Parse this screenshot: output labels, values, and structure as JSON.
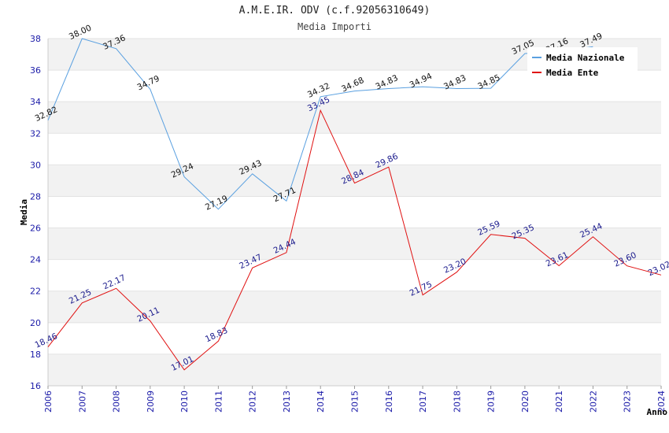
{
  "chart_data": {
    "type": "line",
    "title": "A.M.E.IR. ODV (c.f.92056310649)",
    "subtitle": "Media Importi",
    "xlabel": "Anno",
    "ylabel": "Media",
    "ylim": [
      16,
      38
    ],
    "yticks": [
      16,
      18,
      20,
      22,
      24,
      26,
      28,
      30,
      32,
      34,
      36,
      38
    ],
    "x": [
      "2006",
      "2007",
      "2008",
      "2009",
      "2010",
      "2011",
      "2012",
      "2013",
      "2014",
      "2015",
      "2016",
      "2017",
      "2018",
      "2019",
      "2020",
      "2021",
      "2022",
      "2023",
      "2024"
    ],
    "grid": "alternating horizontal bands",
    "legend_position": "top-right",
    "series": [
      {
        "name": "Media Nazionale",
        "color": "#5aa0e0",
        "label_color": "#111111",
        "values": [
          32.82,
          38.0,
          37.36,
          34.79,
          29.24,
          27.19,
          29.43,
          27.71,
          34.32,
          34.68,
          34.83,
          34.94,
          34.83,
          34.85,
          37.05,
          37.16,
          37.49,
          null,
          null
        ],
        "labels": [
          "32.82",
          "38.00",
          "37.36",
          "34.79",
          "29.24",
          "27.19",
          "29.43",
          "27.71",
          "34.32",
          "34.68",
          "34.83",
          "34.94",
          "34.83",
          "34.85",
          "37.05",
          "37.16",
          "37.49",
          "",
          ""
        ]
      },
      {
        "name": "Media Ente",
        "color": "#e01010",
        "label_color": "#1a1a8c",
        "values": [
          18.46,
          21.25,
          22.17,
          20.11,
          17.01,
          18.83,
          23.47,
          24.44,
          33.45,
          28.84,
          29.86,
          21.75,
          23.2,
          25.59,
          25.35,
          23.61,
          25.44,
          23.6,
          23.02
        ],
        "labels": [
          "18.46",
          "21.25",
          "22.17",
          "20.11",
          "17.01",
          "18.83",
          "23.47",
          "24.44",
          "33.45",
          "28.84",
          "29.86",
          "21.75",
          "23.20",
          "25.59",
          "25.35",
          "23.61",
          "25.44",
          "23.60",
          "23.02"
        ]
      }
    ]
  }
}
